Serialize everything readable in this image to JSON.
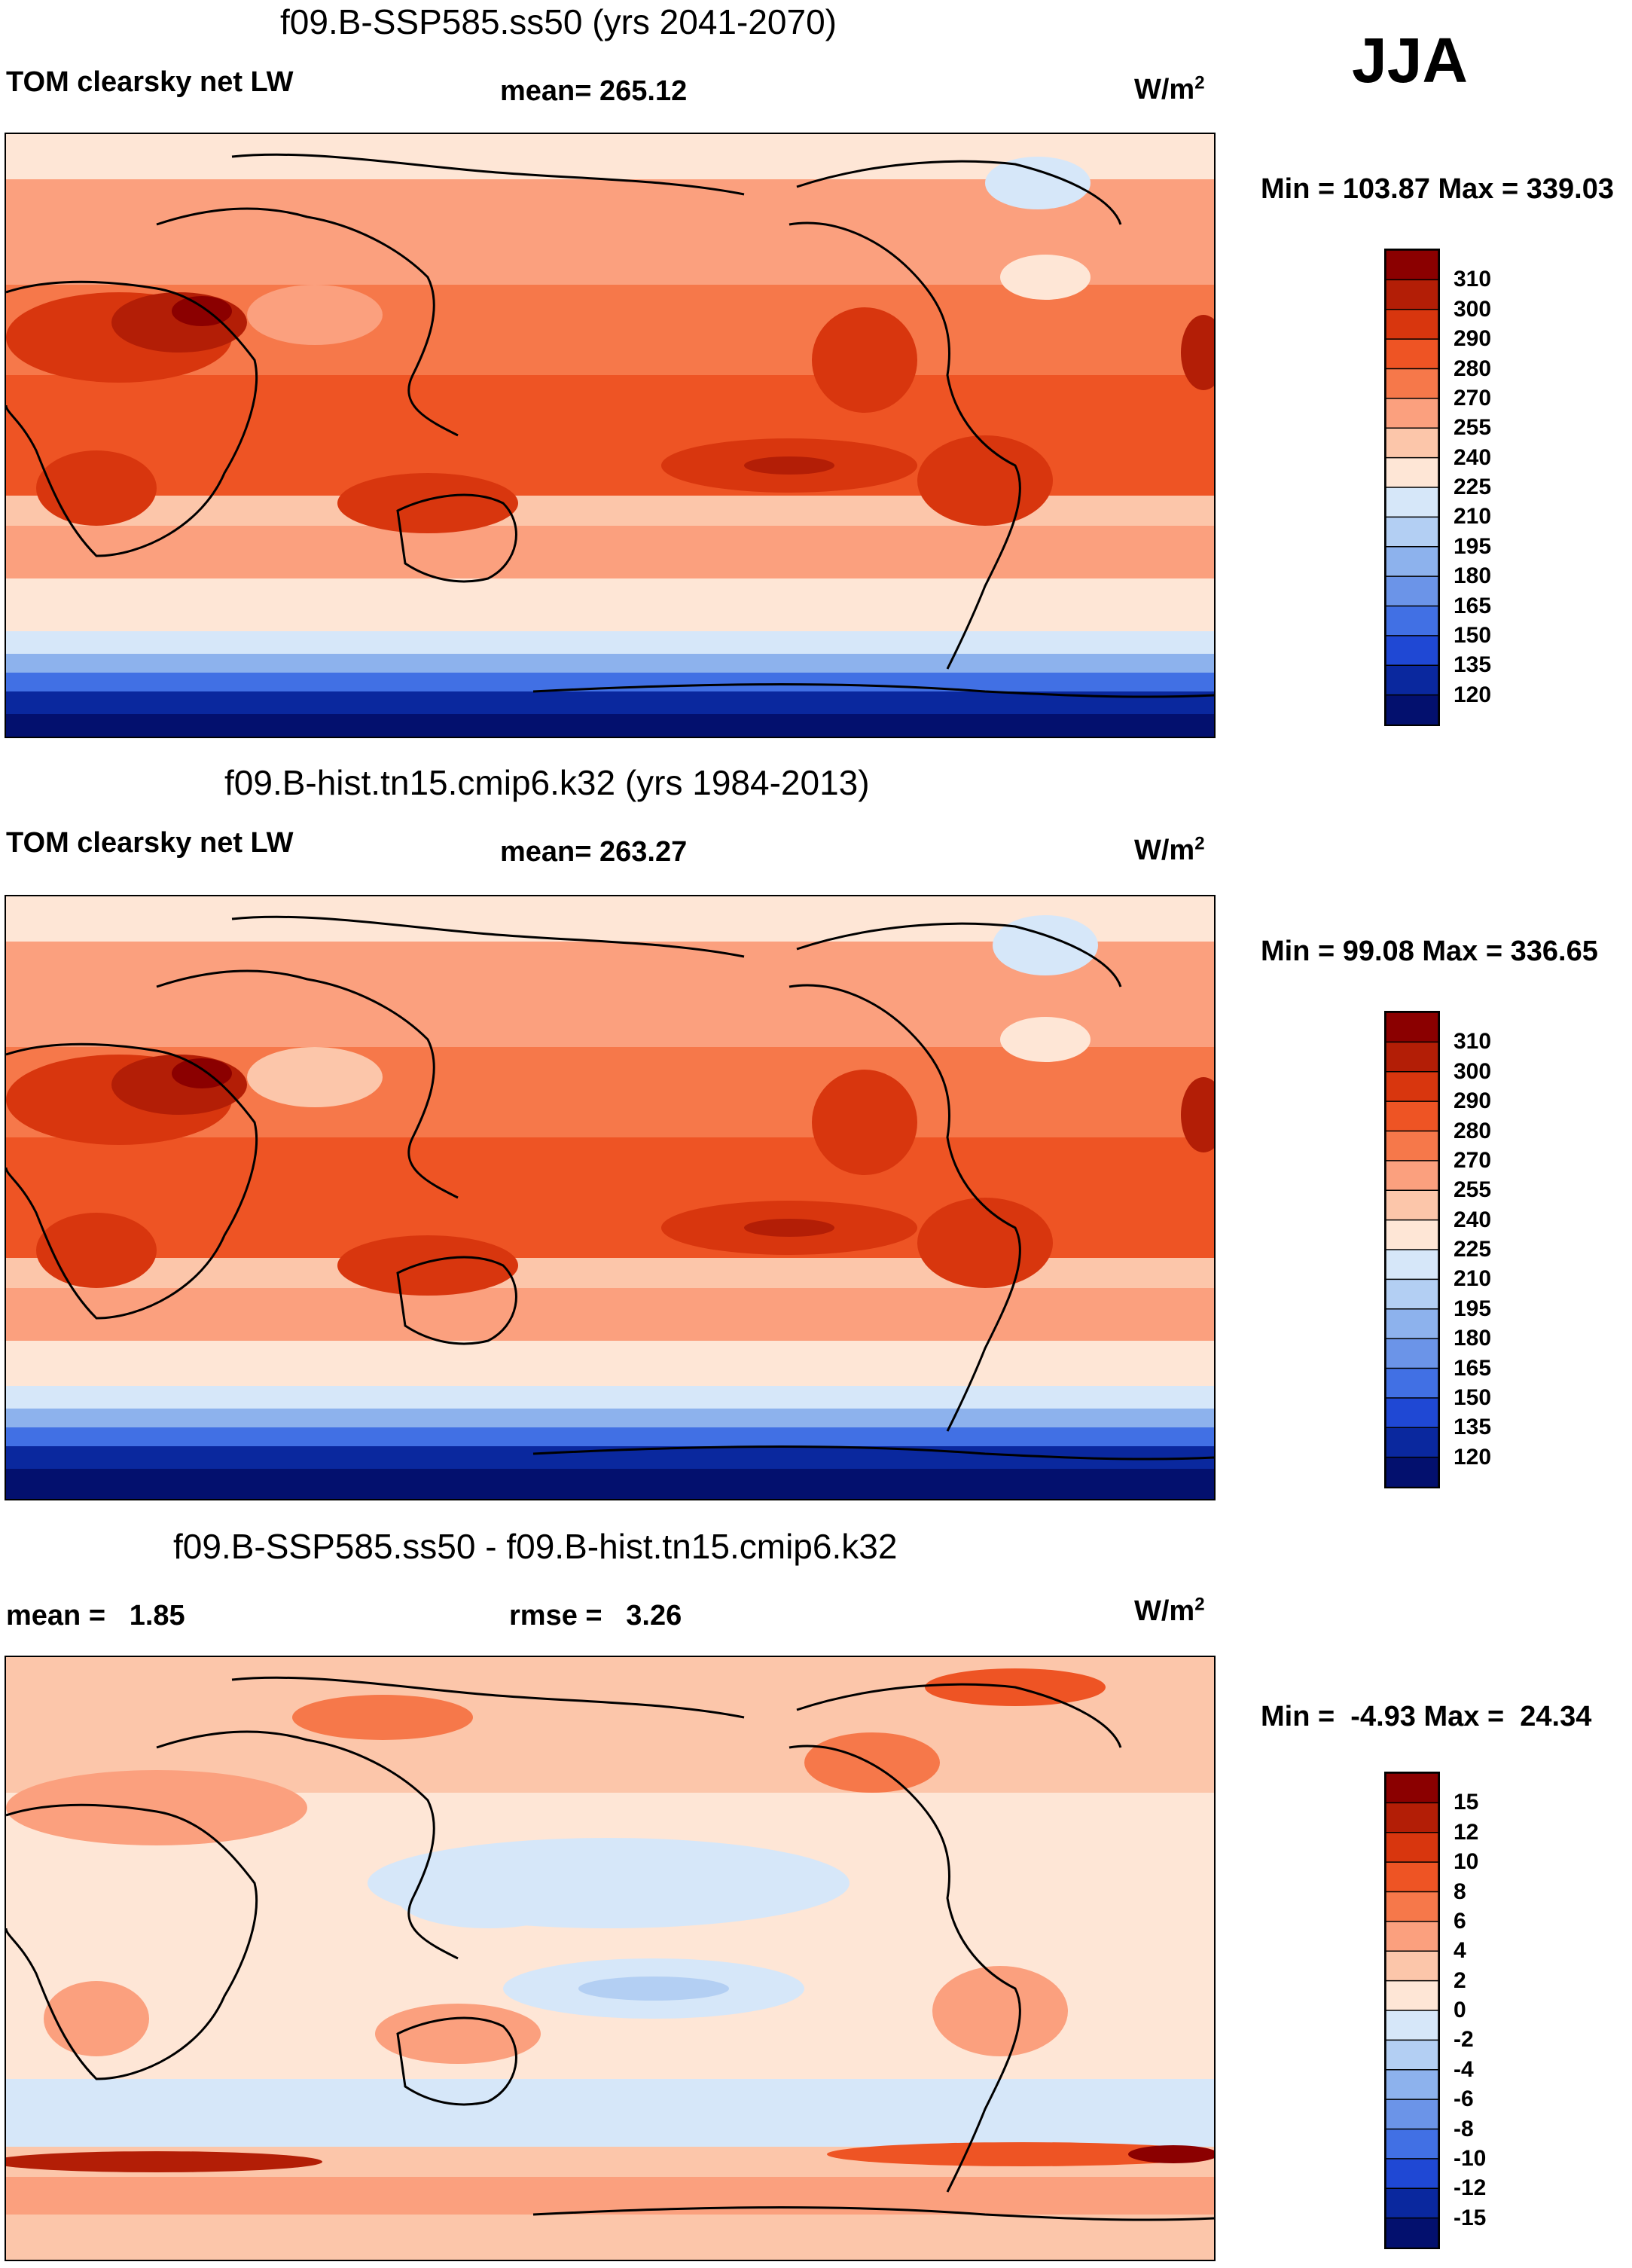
{
  "season": "JJA",
  "units": "W/m",
  "units_sup": "2",
  "panels": [
    {
      "title": "f09.B-SSP585.ss50 (yrs 2041-2070)",
      "left_label": "TOM clearsky net LW",
      "mid_label": "mean= 265.12",
      "minmax": "Min = 103.87 Max = 339.03",
      "colorbar": {
        "levels": [
          "310",
          "300",
          "290",
          "280",
          "270",
          "255",
          "240",
          "225",
          "210",
          "195",
          "180",
          "165",
          "150",
          "135",
          "120"
        ],
        "colors": [
          "#8b0000",
          "#b31e06",
          "#d8360e",
          "#ee5424",
          "#f6784a",
          "#fba07e",
          "#fcc6aa",
          "#fee6d6",
          "#d6e7f9",
          "#b3cff3",
          "#8db2ed",
          "#6b94e8",
          "#4170e4",
          "#1f48d4",
          "#0a289e",
          "#03106e"
        ]
      }
    },
    {
      "title": "f09.B-hist.tn15.cmip6.k32 (yrs 1984-2013)",
      "left_label": "TOM clearsky net LW",
      "mid_label": "mean= 263.27",
      "minmax": "Min =  99.08 Max = 336.65",
      "colorbar": {
        "levels": [
          "310",
          "300",
          "290",
          "280",
          "270",
          "255",
          "240",
          "225",
          "210",
          "195",
          "180",
          "165",
          "150",
          "135",
          "120"
        ],
        "colors": [
          "#8b0000",
          "#b31e06",
          "#d8360e",
          "#ee5424",
          "#f6784a",
          "#fba07e",
          "#fcc6aa",
          "#fee6d6",
          "#d6e7f9",
          "#b3cff3",
          "#8db2ed",
          "#6b94e8",
          "#4170e4",
          "#1f48d4",
          "#0a289e",
          "#03106e"
        ]
      }
    },
    {
      "title": "f09.B-SSP585.ss50 - f09.B-hist.tn15.cmip6.k32",
      "left_label": "mean =   1.85",
      "mid_label": "rmse =   3.26",
      "minmax": "Min =  -4.93 Max =  24.34",
      "colorbar": {
        "levels": [
          "15",
          "12",
          "10",
          "8",
          "6",
          "4",
          "2",
          "0",
          "-2",
          "-4",
          "-6",
          "-8",
          "-10",
          "-12",
          "-15"
        ],
        "colors": [
          "#8b0000",
          "#b31e06",
          "#d8360e",
          "#ee5424",
          "#f6784a",
          "#fba07e",
          "#fcc6aa",
          "#fee6d6",
          "#d6e7f9",
          "#b3cff3",
          "#8db2ed",
          "#6b94e8",
          "#4170e4",
          "#1f48d4",
          "#0a289e",
          "#03106e"
        ]
      }
    }
  ]
}
